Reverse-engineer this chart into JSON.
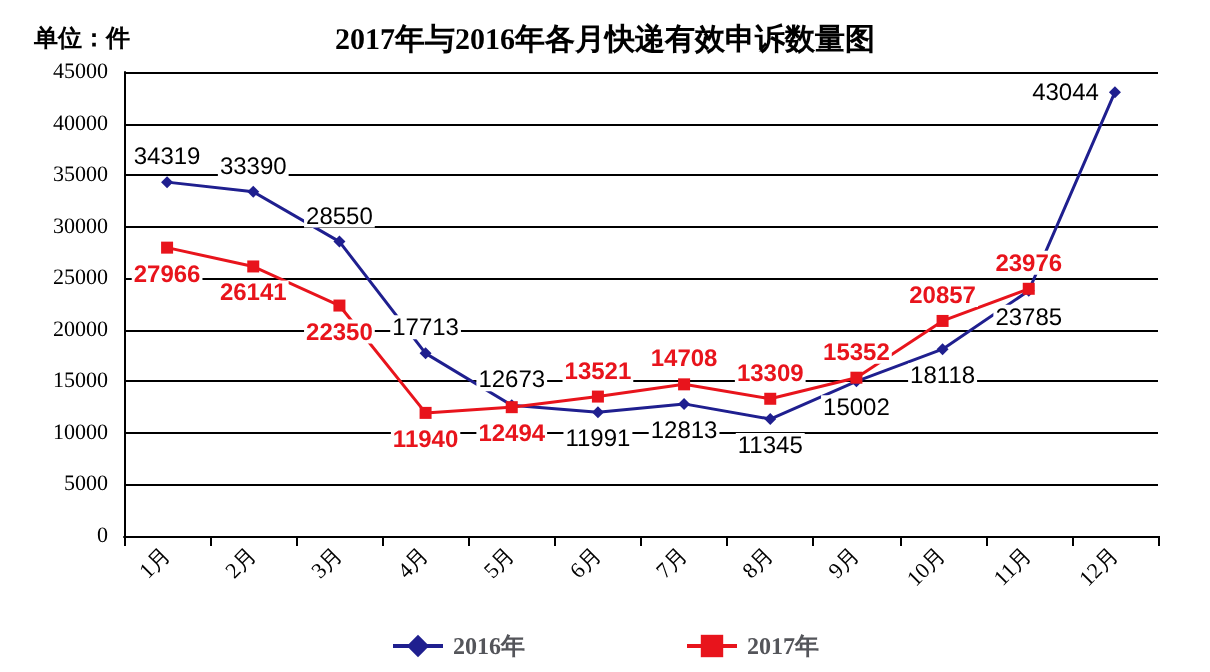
{
  "chart_data": {
    "type": "line",
    "title": "2017年与2016年各月快递有效申诉数量图",
    "annotations": [
      "单位：件"
    ],
    "categories": [
      "1月",
      "2月",
      "3月",
      "4月",
      "5月",
      "6月",
      "7月",
      "8月",
      "9月",
      "10月",
      "11月",
      "12月"
    ],
    "series": [
      {
        "name": "2016年",
        "color": "#1f1f8f",
        "marker": "diamond",
        "values": [
          34319,
          33390,
          28550,
          17713,
          12673,
          11991,
          12813,
          11345,
          15002,
          18118,
          23785,
          43044
        ]
      },
      {
        "name": "2017年",
        "color": "#e8141c",
        "marker": "square",
        "values": [
          27966,
          26141,
          22350,
          11940,
          12494,
          13521,
          14708,
          13309,
          15352,
          20857,
          23976,
          null
        ]
      }
    ],
    "ylim": [
      0,
      45000
    ],
    "yticks": [
      0,
      5000,
      10000,
      15000,
      20000,
      25000,
      30000,
      35000,
      40000,
      45000
    ],
    "grid": "y",
    "legend": "bottom",
    "data_labels": true
  }
}
